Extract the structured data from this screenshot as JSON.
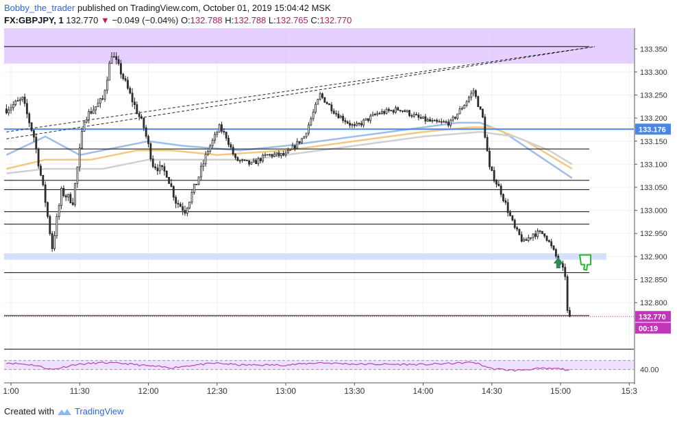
{
  "header": {
    "author": "Bobby_the_trader",
    "published_text": "published on TradingView.com, October 01, 2019 15:04:42 MSK"
  },
  "symbol": {
    "name": "FX:GBPJPY, 1",
    "price": "132.770",
    "change": "−0.049 (−0.04%)",
    "o_label": "O:",
    "o": "132.788",
    "h_label": "H:",
    "h": "132.788",
    "l_label": "L:",
    "l": "132.765",
    "c_label": "C:",
    "c": "132.770"
  },
  "footer": {
    "created_with": "Created with",
    "brand": "TradingView"
  },
  "colors": {
    "up": "#333333",
    "down": "#333333",
    "resistance_zone": "#e1c8ff",
    "support_zone": "#d0defa",
    "blue_level": "#4a86e8",
    "current_price": "#c038b8",
    "ma_blue": "#9fbdea",
    "ma_orange": "#f4c77e",
    "ma_grey": "#d0d0d0",
    "rsi_line": "#b245b5",
    "rsi_band": "#f0e0ff",
    "arrow_green": "#2e8b57",
    "thumb_green": "#22bb22"
  },
  "chart_data": {
    "type": "candlestick",
    "symbol": "FX:GBPJPY",
    "interval": "1",
    "y_axis": {
      "range": [
        132.705,
        133.395
      ],
      "ticks": [
        "133.350",
        "133.300",
        "133.250",
        "133.200",
        "133.150",
        "133.100",
        "133.050",
        "133.000",
        "132.950",
        "132.900",
        "132.850",
        "132.800"
      ]
    },
    "x_axis": {
      "range": [
        "10:57",
        "15:32"
      ],
      "ticks": [
        {
          "label": "1:00",
          "time": "11:00"
        },
        {
          "label": "11:30",
          "time": "11:30"
        },
        {
          "label": "12:00",
          "time": "12:00"
        },
        {
          "label": "12:30",
          "time": "12:30"
        },
        {
          "label": "13:00",
          "time": "13:00"
        },
        {
          "label": "13:30",
          "time": "13:30"
        },
        {
          "label": "14:00",
          "time": "14:00"
        },
        {
          "label": "14:30",
          "time": "14:30"
        },
        {
          "label": "15:00",
          "time": "15:00"
        },
        {
          "label": "15:3",
          "time": "15:30"
        }
      ]
    },
    "price_keyframes": [
      [
        "10:58",
        133.22
      ],
      [
        "11:05",
        133.24
      ],
      [
        "11:10",
        133.16
      ],
      [
        "11:15",
        133.02
      ],
      [
        "11:18",
        132.92
      ],
      [
        "11:22",
        133.04
      ],
      [
        "11:27",
        133.02
      ],
      [
        "11:32",
        133.2
      ],
      [
        "11:40",
        133.24
      ],
      [
        "11:44",
        133.34
      ],
      [
        "11:48",
        133.3
      ],
      [
        "11:52",
        133.25
      ],
      [
        "11:58",
        133.18
      ],
      [
        "12:02",
        133.1
      ],
      [
        "12:08",
        133.08
      ],
      [
        "12:12",
        133.02
      ],
      [
        "12:16",
        133.0
      ],
      [
        "12:21",
        133.06
      ],
      [
        "12:26",
        133.13
      ],
      [
        "12:31",
        133.18
      ],
      [
        "12:34",
        133.16
      ],
      [
        "12:38",
        133.11
      ],
      [
        "12:45",
        133.1
      ],
      [
        "12:52",
        133.12
      ],
      [
        "13:00",
        133.12
      ],
      [
        "13:08",
        133.16
      ],
      [
        "13:15",
        133.25
      ],
      [
        "13:22",
        133.21
      ],
      [
        "13:30",
        133.18
      ],
      [
        "13:40",
        133.21
      ],
      [
        "13:50",
        133.22
      ],
      [
        "13:58",
        133.2
      ],
      [
        "14:05",
        133.19
      ],
      [
        "14:12",
        133.19
      ],
      [
        "14:18",
        133.23
      ],
      [
        "14:22",
        133.26
      ],
      [
        "14:26",
        133.2
      ],
      [
        "14:29",
        133.09
      ],
      [
        "14:34",
        133.04
      ],
      [
        "14:40",
        132.96
      ],
      [
        "14:44",
        132.93
      ],
      [
        "14:48",
        132.95
      ],
      [
        "14:53",
        132.95
      ],
      [
        "14:56",
        132.92
      ],
      [
        "14:58",
        132.9
      ],
      [
        "15:00",
        132.88
      ],
      [
        "15:02",
        132.86
      ],
      [
        "15:03",
        132.78
      ],
      [
        "15:04",
        132.77
      ]
    ],
    "volatility_zones": [
      {
        "from": "10:58",
        "to": "12:25",
        "amplitude": 0.018
      },
      {
        "from": "12:25",
        "to": "14:25",
        "amplitude": 0.012
      },
      {
        "from": "14:25",
        "to": "15:04",
        "amplitude": 0.014
      }
    ],
    "moving_averages": [
      {
        "color": "#9fbdea",
        "points": [
          [
            "10:58",
            133.12
          ],
          [
            "11:15",
            133.16
          ],
          [
            "11:30",
            133.12
          ],
          [
            "11:50",
            133.14
          ],
          [
            "12:00",
            133.15
          ],
          [
            "12:15",
            133.14
          ],
          [
            "12:40",
            133.13
          ],
          [
            "13:00",
            133.14
          ],
          [
            "13:30",
            133.16
          ],
          [
            "14:00",
            133.18
          ],
          [
            "14:15",
            133.19
          ],
          [
            "14:25",
            133.19
          ],
          [
            "14:35",
            133.17
          ],
          [
            "14:50",
            133.12
          ],
          [
            "15:05",
            133.07
          ]
        ]
      },
      {
        "color": "#f4c77e",
        "points": [
          [
            "10:58",
            133.09
          ],
          [
            "11:15",
            133.11
          ],
          [
            "11:35",
            133.11
          ],
          [
            "11:55",
            133.13
          ],
          [
            "12:10",
            133.13
          ],
          [
            "12:30",
            133.12
          ],
          [
            "13:00",
            133.13
          ],
          [
            "13:30",
            133.15
          ],
          [
            "14:00",
            133.17
          ],
          [
            "14:20",
            133.18
          ],
          [
            "14:30",
            133.18
          ],
          [
            "14:45",
            133.15
          ],
          [
            "15:05",
            133.09
          ]
        ]
      },
      {
        "color": "#d0d0d0",
        "points": [
          [
            "10:58",
            133.08
          ],
          [
            "11:15",
            133.09
          ],
          [
            "11:40",
            133.09
          ],
          [
            "12:00",
            133.11
          ],
          [
            "12:20",
            133.11
          ],
          [
            "12:45",
            133.11
          ],
          [
            "13:00",
            133.12
          ],
          [
            "13:30",
            133.14
          ],
          [
            "14:00",
            133.16
          ],
          [
            "14:25",
            133.17
          ],
          [
            "14:40",
            133.16
          ],
          [
            "14:55",
            133.13
          ],
          [
            "15:05",
            133.1
          ]
        ]
      }
    ],
    "resistance_zone": {
      "from": 133.395,
      "to": 133.318
    },
    "support_zone": {
      "from": 132.907,
      "to": 132.893,
      "end_time": "15:20"
    },
    "horizontal_levels": [
      133.355,
      133.133,
      133.065,
      133.045,
      132.997,
      132.97,
      132.865,
      132.772
    ],
    "blue_level": 133.176,
    "trend_lines": [
      {
        "from": [
          "10:58",
          133.155
        ],
        "to": [
          "15:15",
          133.355
        ]
      },
      {
        "from": [
          "10:58",
          133.17
        ],
        "to": [
          "15:15",
          133.355
        ]
      }
    ],
    "markers": {
      "arrow_up": {
        "time": "14:59",
        "price": 132.885
      },
      "thumbs_down": {
        "time": "15:03",
        "price": 132.89
      }
    },
    "price_labels": {
      "blue_level": "133.176",
      "last_price": "132.770",
      "countdown": "00:19"
    },
    "rsi": {
      "label": "40.00",
      "y_range": [
        20,
        80
      ],
      "band": [
        40,
        60
      ],
      "keyframes": [
        [
          "10:58",
          55
        ],
        [
          "11:10",
          50
        ],
        [
          "11:18",
          40
        ],
        [
          "11:28",
          51
        ],
        [
          "11:40",
          55
        ],
        [
          "11:50",
          53
        ],
        [
          "12:00",
          48
        ],
        [
          "12:10",
          44
        ],
        [
          "12:20",
          50
        ],
        [
          "12:30",
          54
        ],
        [
          "12:40",
          50
        ],
        [
          "13:00",
          50
        ],
        [
          "13:15",
          55
        ],
        [
          "13:30",
          52
        ],
        [
          "14:00",
          51
        ],
        [
          "14:15",
          54
        ],
        [
          "14:22",
          56
        ],
        [
          "14:30",
          42
        ],
        [
          "14:40",
          38
        ],
        [
          "14:50",
          42
        ],
        [
          "15:00",
          42
        ],
        [
          "15:04",
          38
        ]
      ]
    }
  }
}
